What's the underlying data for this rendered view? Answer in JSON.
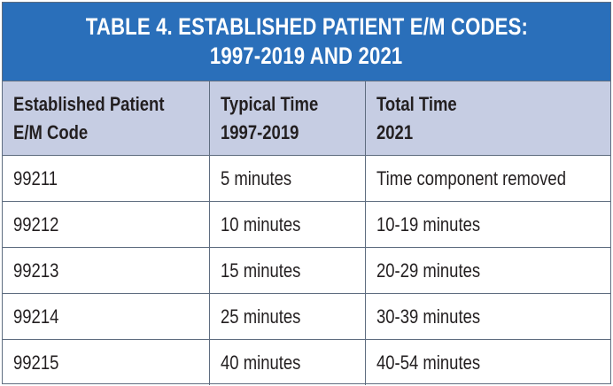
{
  "title": {
    "line1": "TABLE 4. ESTABLISHED PATIENT E/M CODES:",
    "line2": "1997-2019 AND 2021"
  },
  "columns": [
    {
      "line1": "Established Patient",
      "line2": "E/M Code"
    },
    {
      "line1": "Typical Time",
      "line2": "1997-2019"
    },
    {
      "line1": "Total Time",
      "line2": "2021"
    }
  ],
  "rows": [
    {
      "code": "99211",
      "typical": "5 minutes",
      "total": "Time component removed"
    },
    {
      "code": "99212",
      "typical": "10 minutes",
      "total": "10-19 minutes"
    },
    {
      "code": "99213",
      "typical": "15 minutes",
      "total": "20-29 minutes"
    },
    {
      "code": "99214",
      "typical": "25 minutes",
      "total": "30-39 minutes"
    },
    {
      "code": "99215",
      "typical": "40 minutes",
      "total": "40-54 minutes"
    }
  ],
  "colors": {
    "title_background": "#2a6fba",
    "header_background": "#c6cde3",
    "border": "#5f6d80"
  }
}
